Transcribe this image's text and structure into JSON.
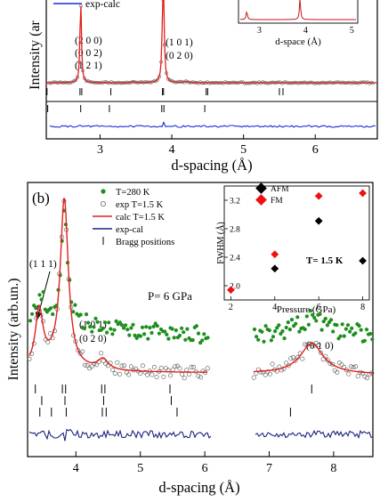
{
  "top_panel": {
    "ylabel_visible": "Intensity (ar",
    "legend_visible": "exp-calc",
    "peak_labels": [
      {
        "lines": [
          "(2 0 0)",
          "(0 0 2)",
          "(1 2 1)"
        ]
      },
      {
        "lines": [
          "(1 0 1)",
          "(0 2 0)"
        ]
      }
    ],
    "xlabel": "d-spacing (Å)",
    "x_ticks": [
      "3",
      "4",
      "5",
      "6"
    ],
    "inset": {
      "xlabel": "d-space (Å)",
      "x_ticks": [
        "3",
        "4",
        "5"
      ]
    }
  },
  "bottom_panel": {
    "panel_label": "(b)",
    "ylabel": "Intensity (arb.un.)",
    "xlabel": "d-spacing (Å)",
    "x_ticks": [
      "4",
      "5",
      "6",
      "7",
      "8"
    ],
    "legend": [
      {
        "label": "T=280 K",
        "kind": "dot",
        "color": "#1e8f1e"
      },
      {
        "label": "exp T=1.5 K",
        "kind": "circle",
        "color": "#666666"
      },
      {
        "label": "calc T=1.5 K",
        "kind": "line",
        "color": "#e02020"
      },
      {
        "label": "exp-cal",
        "kind": "line",
        "color": "#1a237e"
      },
      {
        "label": "Bragg positions",
        "kind": "tick",
        "color": "#000000"
      }
    ],
    "annotations": {
      "pressure": "P= 6 GPa",
      "peak_111": "(1 1 1)",
      "peak_101_line1": "(1 0 1)",
      "peak_101_line2": "(0 2 0)",
      "peak_010": "(0 1 0)"
    }
  },
  "chart_data": [
    {
      "type": "scatter",
      "title": "",
      "xlabel": "Pressure (GPa)",
      "ylabel": "FWHM (Å)",
      "annotation": "T= 1.5 K",
      "xlim": [
        1.7,
        8.3
      ],
      "ylim": [
        1.8,
        3.4
      ],
      "x_ticks": [
        "2",
        "4",
        "6",
        "8"
      ],
      "y_ticks": [
        "2.0",
        "2.4",
        "2.8",
        "3.2"
      ],
      "legend_placement": "top-left",
      "series": [
        {
          "name": "AFM",
          "color": "#000000",
          "x": [
            4,
            6,
            8
          ],
          "y": [
            2.24,
            2.91,
            2.35
          ]
        },
        {
          "name": "FM",
          "color": "#ee1111",
          "x": [
            2,
            4,
            6,
            8
          ],
          "y": [
            1.94,
            2.44,
            3.26,
            3.3
          ]
        }
      ]
    }
  ]
}
